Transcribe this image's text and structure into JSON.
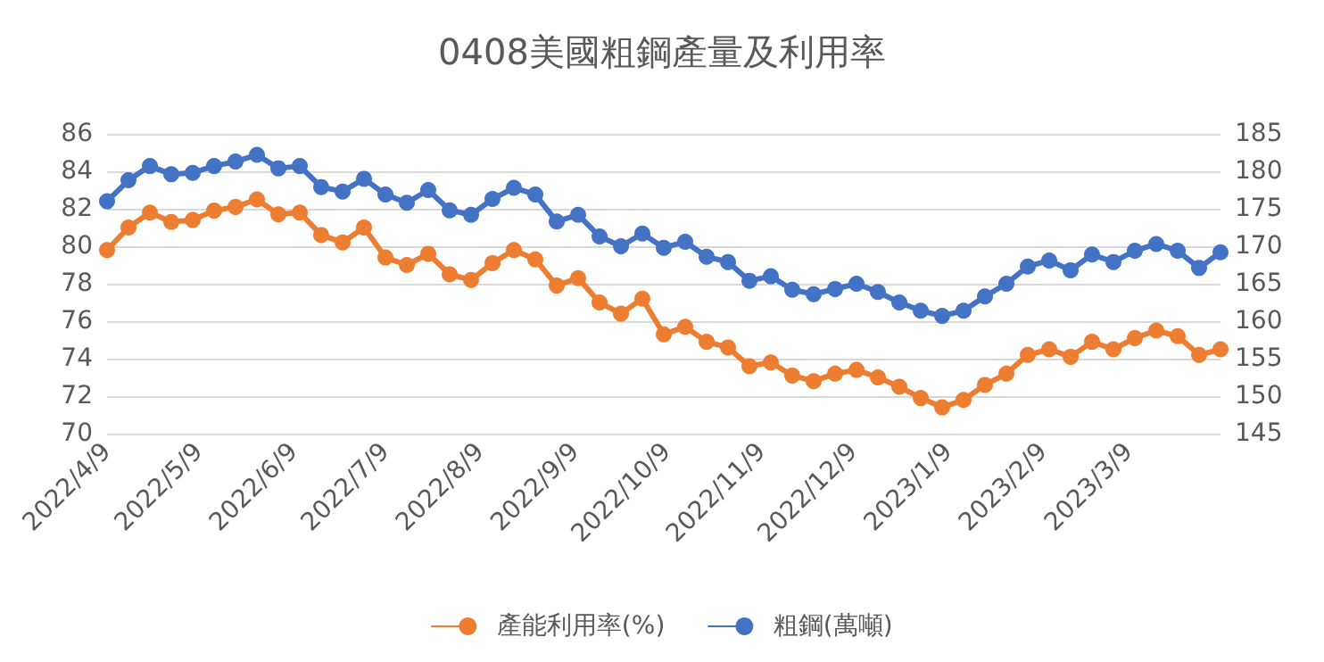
{
  "chart_data": {
    "type": "line",
    "title": "0408美國粗鋼產量及利用率",
    "x": [
      "2022-04-09",
      "2022-04-16",
      "2022-04-23",
      "2022-04-30",
      "2022-05-07",
      "2022-05-14",
      "2022-05-21",
      "2022-05-28",
      "2022-06-04",
      "2022-06-11",
      "2022-06-18",
      "2022-06-25",
      "2022-07-02",
      "2022-07-09",
      "2022-07-16",
      "2022-07-23",
      "2022-07-30",
      "2022-08-06",
      "2022-08-13",
      "2022-08-20",
      "2022-08-27",
      "2022-09-03",
      "2022-09-10",
      "2022-09-17",
      "2022-09-24",
      "2022-10-01",
      "2022-10-08",
      "2022-10-15",
      "2022-10-22",
      "2022-10-29",
      "2022-11-05",
      "2022-11-12",
      "2022-11-19",
      "2022-11-26",
      "2022-12-03",
      "2022-12-10",
      "2022-12-17",
      "2022-12-24",
      "2022-12-31",
      "2023-01-07",
      "2023-01-14",
      "2023-01-21",
      "2023-01-28",
      "2023-02-04",
      "2023-02-11",
      "2023-02-18",
      "2023-02-25",
      "2023-03-04",
      "2023-03-11",
      "2023-03-18",
      "2023-03-25",
      "2023-04-01",
      "2023-04-08"
    ],
    "series": [
      {
        "name": "產能利用率(%)",
        "color": "#ed7d31",
        "values": [
          79.8,
          81.0,
          81.8,
          81.3,
          81.4,
          81.9,
          82.1,
          82.5,
          81.7,
          81.8,
          80.6,
          80.2,
          81.0,
          79.4,
          79.0,
          79.6,
          78.5,
          78.2,
          79.1,
          79.8,
          79.3,
          77.9,
          78.3,
          77.0,
          76.4,
          77.2,
          75.3,
          75.7,
          74.9,
          74.6,
          73.6,
          73.8,
          73.1,
          72.8,
          73.2,
          73.4,
          73.0,
          72.5,
          71.9,
          71.4,
          71.8,
          72.6,
          73.2,
          74.2,
          74.5,
          74.1,
          74.9,
          74.5,
          75.1,
          75.5,
          75.2,
          74.2,
          74.5
        ]
      },
      {
        "name": "粗鋼(萬噸)",
        "color": "#4472c4",
        "axis": "y2",
        "values": [
          176.0,
          178.8,
          180.7,
          179.6,
          179.8,
          180.7,
          181.3,
          182.2,
          180.4,
          180.7,
          177.9,
          177.3,
          179.0,
          176.9,
          175.8,
          177.5,
          174.8,
          174.2,
          176.3,
          177.8,
          176.9,
          173.3,
          174.2,
          171.3,
          170.0,
          171.7,
          169.8,
          170.6,
          168.6,
          167.9,
          165.4,
          166.0,
          164.2,
          163.6,
          164.3,
          165.0,
          163.9,
          162.5,
          161.4,
          160.7,
          161.4,
          163.3,
          165.0,
          167.3,
          168.1,
          166.8,
          168.9,
          167.9,
          169.4,
          170.3,
          169.4,
          167.1,
          169.2
        ]
      }
    ],
    "xlim": [
      "2022-04-09",
      "2023-04-08"
    ],
    "xticks": [
      {
        "value": "2022-04-09",
        "label": "2022/4/9"
      },
      {
        "value": "2022-05-09",
        "label": "2022/5/9"
      },
      {
        "value": "2022-06-09",
        "label": "2022/6/9"
      },
      {
        "value": "2022-07-09",
        "label": "2022/7/9"
      },
      {
        "value": "2022-08-09",
        "label": "2022/8/9"
      },
      {
        "value": "2022-09-09",
        "label": "2022/9/9"
      },
      {
        "value": "2022-10-09",
        "label": "2022/10/9"
      },
      {
        "value": "2022-11-09",
        "label": "2022/11/9"
      },
      {
        "value": "2022-12-09",
        "label": "2022/12/9"
      },
      {
        "value": "2023-01-09",
        "label": "2023/1/9"
      },
      {
        "value": "2023-02-09",
        "label": "2023/2/9"
      },
      {
        "value": "2023-03-09",
        "label": "2023/3/9"
      }
    ],
    "ylim": [
      70,
      86
    ],
    "yticks": [
      70,
      72,
      74,
      76,
      78,
      80,
      82,
      84,
      86
    ],
    "y2lim": [
      145,
      185
    ],
    "y2ticks": [
      145,
      150,
      155,
      160,
      165,
      170,
      175,
      180,
      185
    ],
    "grid": "y",
    "legend": "bottom",
    "marker": "circle",
    "line_style": "solid"
  }
}
